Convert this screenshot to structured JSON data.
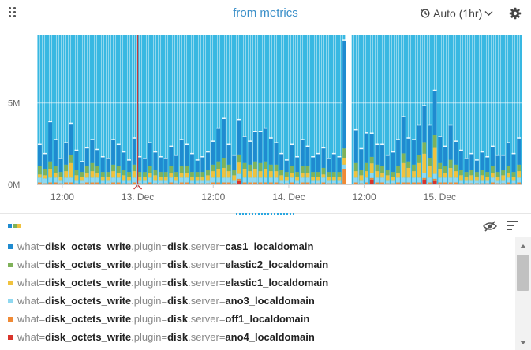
{
  "header": {
    "title": "from metrics",
    "refresh_label": "Auto (1hr)",
    "icons": {
      "grip": "drag-grip-icon",
      "history": "history-icon",
      "chevron": "chevron-down-icon",
      "gear": "gear-icon"
    }
  },
  "chart_data": {
    "type": "bar",
    "stacked": true,
    "y_ticks": [
      "5M",
      "0M"
    ],
    "y_tick_values": [
      5000000,
      0
    ],
    "ylim": [
      0,
      9200000
    ],
    "x_ticks": [
      "12:00",
      "13. Dec",
      "12:00",
      "14. Dec",
      "12:00",
      "15. Dec"
    ],
    "x_tick_times": [
      "2023-12-12 12:00",
      "2023-12-13 00:00",
      "2023-12-13 12:00",
      "2023-12-14 00:00",
      "2023-12-14 12:00",
      "2023-12-15 00:00"
    ],
    "x_range": [
      "2023-12-12 08:00",
      "2023-12-15 13:00"
    ],
    "background_bar_value": 9200000,
    "background_color": "#38b8e2",
    "gap": {
      "from": "2023-12-14 09:00",
      "to": "2023-12-14 10:00"
    },
    "marker": {
      "time": "2023-12-13 00:00",
      "color": "#c83a3a"
    },
    "grid": true,
    "colors": {
      "cas1": "#1f8bd0",
      "elastic2": "#7fb25a",
      "elastic1": "#f0c23e",
      "ano3": "#8fd8f0",
      "off1": "#f08a35",
      "ano4": "#d9342b"
    },
    "series": [
      {
        "name": "cas1_localdomain",
        "values": [
          1.3,
          0.9,
          2.4,
          1.6,
          0.8,
          1.3,
          1.9,
          1.2,
          0.6,
          1.1,
          1.4,
          1.0,
          0.9,
          0.8,
          1.5,
          1.3,
          1.1,
          0.7,
          1.6,
          0.9,
          0.8,
          1.4,
          1.1,
          0.9,
          0.8,
          1.2,
          1.0,
          1.6,
          1.3,
          1.1,
          0.7,
          0.9,
          1.1,
          1.4,
          2.0,
          2.4,
          1.2,
          0.9,
          2.1,
          1.6,
          1.4,
          1.8,
          1.9,
          2.0,
          1.6,
          1.3,
          1.0,
          0.7,
          1.3,
          0.9,
          1.6,
          1.2,
          0.9,
          1.1,
          1.2,
          0.8,
          1.1,
          0.9,
          6.6,
          2.0,
          1.3,
          1.8,
          1.4,
          1.2,
          1.3,
          0.9,
          1.2,
          1.6,
          2.2,
          1.4,
          1.5,
          1.8,
          2.2,
          2.0,
          2.7,
          1.6,
          1.2,
          2.1,
          1.4,
          1.2,
          0.8,
          1.0,
          0.7,
          1.1,
          0.9,
          1.2,
          1.0,
          0.9,
          1.4,
          1.1,
          1.6
        ]
      },
      {
        "name": "elastic2_localdomain",
        "values": [
          0.5,
          0.4,
          0.5,
          0.4,
          0.3,
          0.4,
          0.5,
          0.3,
          0.3,
          0.4,
          0.5,
          0.4,
          0.3,
          0.3,
          0.4,
          0.4,
          0.3,
          0.3,
          0.4,
          0.3,
          0.3,
          0.4,
          0.3,
          0.3,
          0.3,
          0.4,
          0.3,
          0.4,
          0.4,
          0.3,
          0.3,
          0.3,
          0.3,
          0.4,
          0.5,
          0.6,
          0.4,
          0.3,
          0.5,
          0.4,
          0.4,
          0.5,
          0.5,
          0.5,
          0.4,
          0.4,
          0.3,
          0.3,
          0.4,
          0.3,
          0.4,
          0.4,
          0.3,
          0.3,
          0.4,
          0.3,
          0.3,
          0.3,
          0.6,
          0.5,
          0.3,
          0.5,
          0.4,
          0.4,
          0.4,
          0.3,
          0.3,
          0.4,
          0.6,
          0.4,
          0.4,
          0.5,
          0.7,
          0.5,
          0.8,
          0.4,
          0.4,
          0.5,
          0.4,
          0.3,
          0.3,
          0.3,
          0.3,
          0.3,
          0.3,
          0.4,
          0.3,
          0.3,
          0.4,
          0.3,
          0.4
        ]
      },
      {
        "name": "elastic1_localdomain",
        "values": [
          0.2,
          0.2,
          0.5,
          0.3,
          0.2,
          0.4,
          0.9,
          0.3,
          0.2,
          0.3,
          0.4,
          0.3,
          0.2,
          0.2,
          0.4,
          0.3,
          0.3,
          0.2,
          0.4,
          0.2,
          0.2,
          0.3,
          0.3,
          0.2,
          0.2,
          0.3,
          0.2,
          0.3,
          0.3,
          0.2,
          0.2,
          0.2,
          0.3,
          0.4,
          0.5,
          0.6,
          0.4,
          0.3,
          0.7,
          0.5,
          0.4,
          0.5,
          0.4,
          0.5,
          0.4,
          0.4,
          0.3,
          0.2,
          0.3,
          0.2,
          0.3,
          0.3,
          0.2,
          0.2,
          0.2,
          0.2,
          0.2,
          0.2,
          0.4,
          0.4,
          0.3,
          0.4,
          0.6,
          0.4,
          0.3,
          0.3,
          0.2,
          0.3,
          0.9,
          0.6,
          0.4,
          0.9,
          1.2,
          0.7,
          1.6,
          0.5,
          0.3,
          0.6,
          0.4,
          0.3,
          0.2,
          0.3,
          0.2,
          0.3,
          0.2,
          0.3,
          0.2,
          0.3,
          0.3,
          0.2,
          0.4
        ]
      },
      {
        "name": "ano3_localdomain",
        "values": [
          0.3,
          0.3,
          0.3,
          0.3,
          0.2,
          0.3,
          0.3,
          0.2,
          0.2,
          0.3,
          0.3,
          0.3,
          0.2,
          0.2,
          0.3,
          0.3,
          0.2,
          0.2,
          0.3,
          0.2,
          0.2,
          0.3,
          0.2,
          0.2,
          0.2,
          0.3,
          0.2,
          0.3,
          0.3,
          0.2,
          0.2,
          0.2,
          0.2,
          0.3,
          0.3,
          0.3,
          0.3,
          0.2,
          0.3,
          0.3,
          0.3,
          0.3,
          0.3,
          0.3,
          0.3,
          0.3,
          0.2,
          0.2,
          0.3,
          0.2,
          0.3,
          0.3,
          0.2,
          0.2,
          0.3,
          0.2,
          0.2,
          0.2,
          0.3,
          0.3,
          0.2,
          0.3,
          0.3,
          0.3,
          0.3,
          0.2,
          0.2,
          0.3,
          0.3,
          0.3,
          0.3,
          0.3,
          0.3,
          0.3,
          0.3,
          0.3,
          0.3,
          0.3,
          0.3,
          0.2,
          0.2,
          0.2,
          0.2,
          0.2,
          0.2,
          0.3,
          0.2,
          0.2,
          0.3,
          0.2,
          0.3
        ]
      },
      {
        "name": "off1_localdomain",
        "values": [
          0.1,
          0.05,
          0.1,
          0.1,
          0.05,
          0.1,
          0.1,
          0.05,
          0.05,
          0.1,
          0.1,
          0.1,
          0.05,
          0.05,
          0.1,
          0.1,
          0.05,
          0.05,
          0.1,
          0.05,
          0.05,
          0.1,
          0.05,
          0.05,
          0.05,
          0.1,
          0.05,
          0.1,
          0.1,
          0.05,
          0.05,
          0.05,
          0.05,
          0.1,
          0.1,
          0.1,
          0.1,
          0.05,
          0.1,
          0.1,
          0.1,
          0.1,
          0.1,
          0.1,
          0.1,
          0.1,
          0.05,
          0.05,
          0.1,
          0.05,
          0.1,
          0.1,
          0.05,
          0.05,
          0.1,
          0.05,
          0.05,
          0.05,
          0.9,
          0.1,
          0.05,
          0.1,
          0.1,
          0.1,
          0.1,
          0.05,
          0.05,
          0.1,
          0.1,
          0.1,
          0.1,
          0.1,
          0.1,
          0.1,
          0.1,
          0.1,
          0.1,
          0.1,
          0.1,
          0.05,
          0.05,
          0.05,
          0.05,
          0.05,
          0.05,
          0.1,
          0.05,
          0.05,
          0.1,
          0.05,
          0.1
        ]
      },
      {
        "name": "ano4_localdomain",
        "values": [
          0.02,
          0.02,
          0.02,
          0.02,
          0.02,
          0.02,
          0.02,
          0.02,
          0.02,
          0.02,
          0.02,
          0.02,
          0.02,
          0.02,
          0.02,
          0.02,
          0.02,
          0.02,
          0.02,
          0.02,
          0.02,
          0.02,
          0.02,
          0.02,
          0.02,
          0.02,
          0.02,
          0.02,
          0.02,
          0.02,
          0.02,
          0.02,
          0.02,
          0.02,
          0.02,
          0.02,
          0.02,
          0.02,
          0.25,
          0.02,
          0.02,
          0.02,
          0.02,
          0.02,
          0.02,
          0.02,
          0.02,
          0.02,
          0.02,
          0.02,
          0.02,
          0.02,
          0.02,
          0.02,
          0.02,
          0.02,
          0.02,
          0.02,
          0.02,
          0.02,
          0.02,
          0.02,
          0.3,
          0.02,
          0.02,
          0.02,
          0.02,
          0.02,
          0.02,
          0.02,
          0.02,
          0.02,
          0.3,
          0.02,
          0.25,
          0.02,
          0.02,
          0.02,
          0.02,
          0.02,
          0.02,
          0.02,
          0.02,
          0.02,
          0.02,
          0.02,
          0.02,
          0.02,
          0.02,
          0.02,
          0.02
        ]
      }
    ],
    "value_unit_multiplier": 1000000
  },
  "legend": {
    "icons": {
      "swatches": "legend-swatch-icon",
      "visibility": "eye-slash-icon",
      "menu": "legend-menu-icon"
    },
    "items": [
      {
        "k1": "what=",
        "v1": "disk_octets_write",
        "k2": ".plugin=",
        "v2": "disk",
        "k3": ".server=",
        "v3": "cas1_localdomain",
        "color": "#1f8bd0"
      },
      {
        "k1": "what=",
        "v1": "disk_octets_write",
        "k2": ".plugin=",
        "v2": "disk",
        "k3": ".server=",
        "v3": "elastic2_localdomain",
        "color": "#7fb25a"
      },
      {
        "k1": "what=",
        "v1": "disk_octets_write",
        "k2": ".plugin=",
        "v2": "disk",
        "k3": ".server=",
        "v3": "elastic1_localdomain",
        "color": "#f0c23e"
      },
      {
        "k1": "what=",
        "v1": "disk_octets_write",
        "k2": ".plugin=",
        "v2": "disk",
        "k3": ".server=",
        "v3": "ano3_localdomain",
        "color": "#8fd8f0"
      },
      {
        "k1": "what=",
        "v1": "disk_octets_write",
        "k2": ".plugin=",
        "v2": "disk",
        "k3": ".server=",
        "v3": "off1_localdomain",
        "color": "#f08a35"
      },
      {
        "k1": "what=",
        "v1": "disk_octets_write",
        "k2": ".plugin=",
        "v2": "disk",
        "k3": ".server=",
        "v3": "ano4_localdomain",
        "color": "#d9342b"
      }
    ]
  }
}
